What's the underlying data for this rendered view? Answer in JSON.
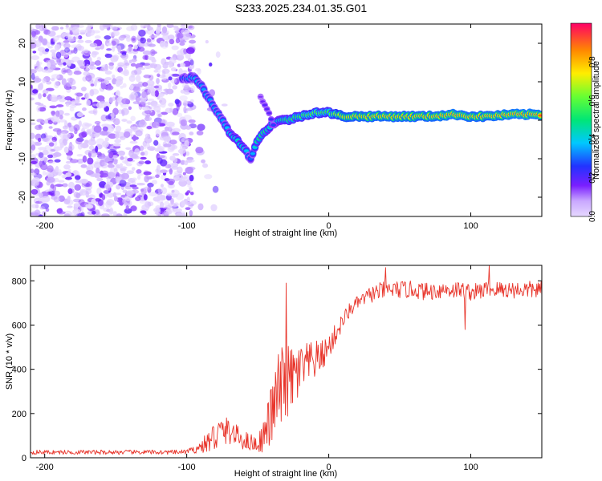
{
  "title": "S233.2025.234.01.35.G01",
  "chart_data": [
    {
      "type": "heatmap",
      "xlabel": "Height of straight line (km)",
      "ylabel": "Frequency (Hz)",
      "xlim": [
        -210,
        150
      ],
      "ylim": [
        -25,
        25
      ],
      "xticks": [
        -200,
        -100,
        0,
        100
      ],
      "xtick_labels": [
        "-200",
        "-100",
        "0",
        "100"
      ],
      "yticks": [
        -20,
        -10,
        0,
        10,
        20
      ],
      "ytick_labels": [
        "-20",
        "-10",
        "0",
        "10",
        "20"
      ],
      "colorbar": {
        "label": "Normalized spectral amplitude",
        "range": [
          0,
          1
        ],
        "ticks": [
          0.0,
          0.2,
          0.4,
          0.6,
          0.8
        ],
        "tick_labels": [
          "0.0",
          "0.2",
          "0.4",
          "0.6",
          "0.8"
        ]
      },
      "ridge": {
        "x": [
          -103,
          -95,
          -90,
          -85,
          -80,
          -75,
          -70,
          -65,
          -60,
          -55,
          -50,
          -45,
          -40,
          -35,
          -30,
          -20,
          -10,
          0,
          10,
          30,
          50,
          70,
          90,
          100,
          110,
          130,
          150
        ],
        "y": [
          11,
          11,
          9,
          6,
          3,
          0,
          -3,
          -5,
          -7,
          -10,
          -5,
          -3,
          -1,
          0,
          0,
          1,
          2,
          2,
          1,
          1,
          1,
          1,
          1.5,
          1,
          1,
          1.5,
          1.5
        ],
        "amplitude": [
          0.3,
          0.4,
          0.35,
          0.35,
          0.35,
          0.35,
          0.4,
          0.45,
          0.45,
          0.3,
          0.5,
          0.55,
          0.4,
          0.45,
          0.55,
          0.6,
          0.65,
          0.6,
          0.8,
          0.85,
          0.85,
          0.85,
          0.9,
          0.85,
          0.85,
          0.9,
          0.9
        ]
      },
      "branch": {
        "x": [
          -48,
          -45,
          -42,
          -40,
          -38
        ],
        "y": [
          6,
          4,
          2,
          0,
          -2
        ],
        "amplitude": [
          0.15,
          0.2,
          0.2,
          0.25,
          0.3
        ]
      },
      "noise": {
        "x_range": [
          -210,
          -95
        ],
        "amplitude_range": [
          0.0,
          0.1
        ]
      }
    },
    {
      "type": "line",
      "xlabel": "Height of straight line (km)",
      "ylabel": "SNR (10 * v/v)",
      "xlim": [
        -210,
        150
      ],
      "ylim": [
        0,
        870
      ],
      "xticks": [
        -200,
        -100,
        0,
        100
      ],
      "xtick_labels": [
        "-200",
        "-100",
        "0",
        "100"
      ],
      "yticks": [
        0,
        200,
        400,
        600,
        800
      ],
      "ytick_labels": [
        "0",
        "200",
        "400",
        "600",
        "800"
      ],
      "color": "#e8352b",
      "series": [
        {
          "name": "SNR",
          "x": [
            -210,
            -180,
            -150,
            -120,
            -105,
            -100,
            -95,
            -90,
            -85,
            -80,
            -75,
            -70,
            -65,
            -60,
            -55,
            -50,
            -45,
            -40,
            -35,
            -30,
            -25,
            -20,
            -15,
            -10,
            -5,
            0,
            5,
            10,
            15,
            20,
            25,
            30,
            40,
            50,
            60,
            70,
            80,
            90,
            95,
            100,
            105,
            110,
            115,
            120,
            130,
            140,
            150
          ],
          "y": [
            25,
            25,
            25,
            25,
            25,
            28,
            35,
            50,
            70,
            100,
            120,
            120,
            100,
            80,
            70,
            60,
            110,
            200,
            300,
            330,
            360,
            390,
            420,
            440,
            460,
            500,
            560,
            620,
            670,
            700,
            720,
            740,
            760,
            760,
            760,
            750,
            760,
            760,
            755,
            750,
            750,
            760,
            760,
            760,
            760,
            760,
            760
          ],
          "jitter": [
            10,
            10,
            10,
            10,
            10,
            12,
            15,
            30,
            50,
            80,
            70,
            60,
            50,
            45,
            40,
            40,
            80,
            150,
            200,
            180,
            150,
            130,
            100,
            90,
            70,
            60,
            50,
            40,
            35,
            30,
            30,
            40,
            40,
            40,
            40,
            40,
            40,
            40,
            40,
            40,
            40,
            40,
            40,
            40,
            40,
            40,
            40
          ]
        }
      ],
      "peaks": {
        "x": [
          -30,
          40,
          96,
          113
        ],
        "y": [
          790,
          860,
          580,
          870
        ]
      }
    }
  ]
}
